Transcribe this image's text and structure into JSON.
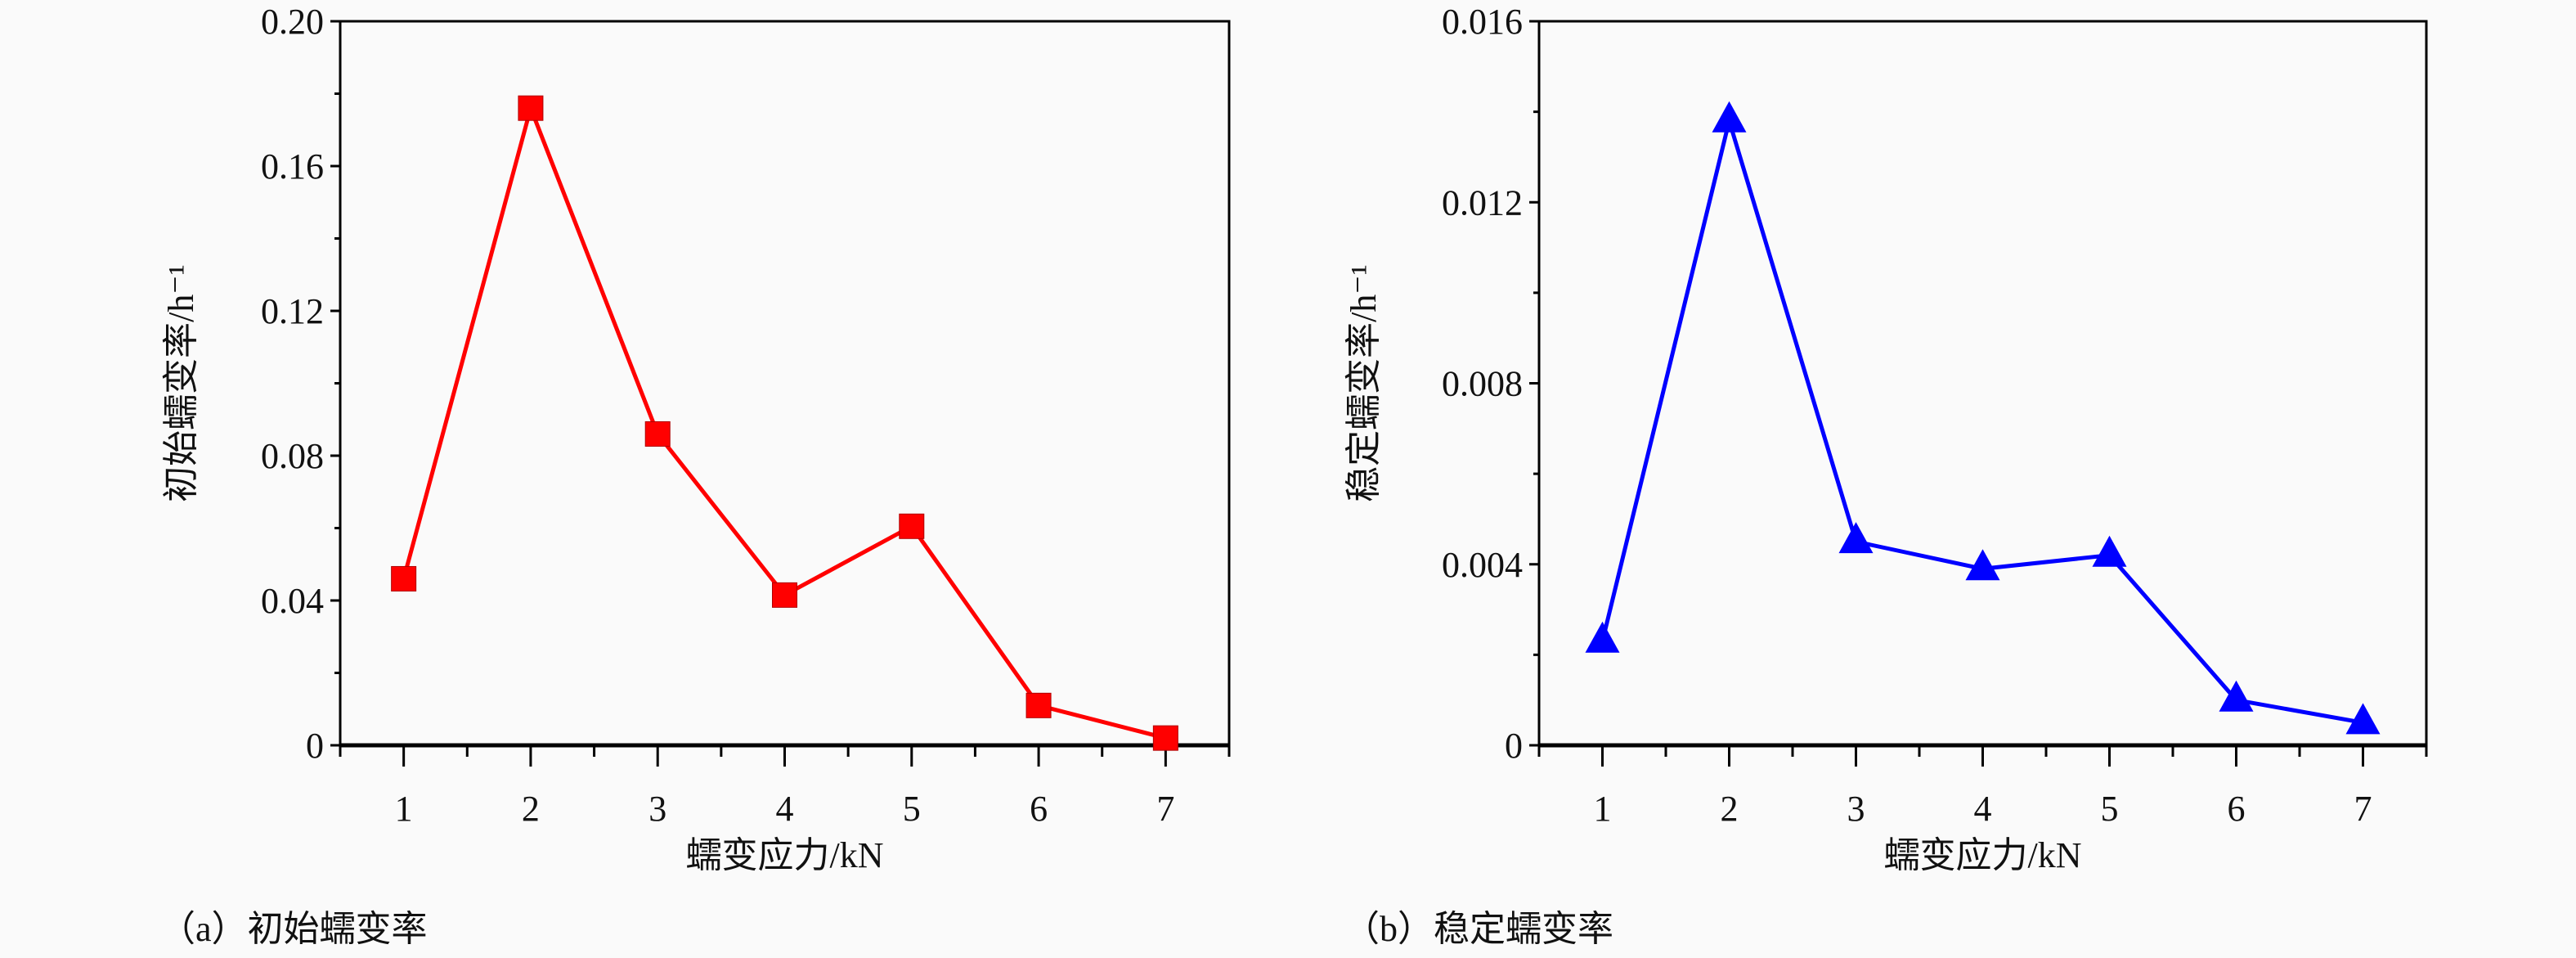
{
  "chart_data": [
    {
      "type": "line",
      "caption": "（a）初始蠕变率",
      "xlabel": "蠕变应力/kN",
      "ylabel": "初始蠕变率/h⁻¹",
      "x": [
        1,
        2,
        3,
        4,
        5,
        6,
        7
      ],
      "values": [
        0.046,
        0.176,
        0.086,
        0.0415,
        0.0605,
        0.011,
        0.002
      ],
      "xlim": [
        0.5,
        7.5
      ],
      "ylim": [
        0,
        0.2
      ],
      "xticks": [
        "1",
        "2",
        "3",
        "4",
        "5",
        "6",
        "7"
      ],
      "yticks": [
        "0",
        "0.04",
        "0.08",
        "0.12",
        "0.16",
        "0.20"
      ],
      "marker": "square",
      "color": "#ff0000",
      "grid": false
    },
    {
      "type": "line",
      "caption": "（b）稳定蠕变率",
      "xlabel": "蠕变应力/kN",
      "ylabel": "稳定蠕变率/h⁻¹",
      "x": [
        1,
        2,
        3,
        4,
        5,
        6,
        7
      ],
      "values": [
        0.0023,
        0.0138,
        0.0045,
        0.0039,
        0.0042,
        0.001,
        0.0005
      ],
      "xlim": [
        0.5,
        7.5
      ],
      "ylim": [
        0,
        0.016
      ],
      "xticks": [
        "1",
        "2",
        "3",
        "4",
        "5",
        "6",
        "7"
      ],
      "yticks": [
        "0",
        "0.004",
        "0.008",
        "0.012",
        "0.016"
      ],
      "marker": "triangle",
      "color": "#0000ff",
      "grid": false
    }
  ]
}
